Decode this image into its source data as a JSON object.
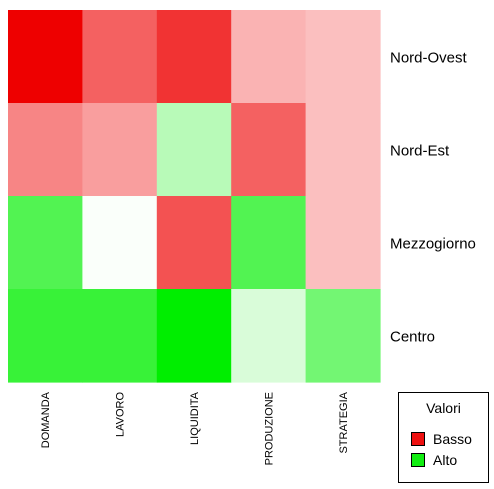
{
  "chart_data": {
    "type": "heatmap",
    "columns": [
      "DOMANDA",
      "LAVORO",
      "LIQUIDITA",
      "PRODUZIONE",
      "STRATEGIA"
    ],
    "rows": [
      "Nord-Ovest",
      "Nord-Est",
      "Mezzogiorno",
      "Centro"
    ],
    "values": [
      [
        -1.0,
        -0.62,
        -0.8,
        -0.3,
        -0.25
      ],
      [
        -0.48,
        -0.38,
        0.28,
        -0.62,
        -0.25
      ],
      [
        0.68,
        0.02,
        -0.68,
        0.68,
        -0.25
      ],
      [
        0.78,
        0.78,
        1.0,
        0.15,
        0.55
      ]
    ],
    "value_range": [
      -1,
      1
    ],
    "legend": {
      "title": "Valori",
      "items": [
        {
          "label": "Basso",
          "color": "#ee1111"
        },
        {
          "label": "Alto",
          "color": "#11ee11"
        }
      ]
    },
    "colors": {
      "low": "#ee0000",
      "mid": "#ffffff",
      "high": "#00ee00"
    }
  }
}
